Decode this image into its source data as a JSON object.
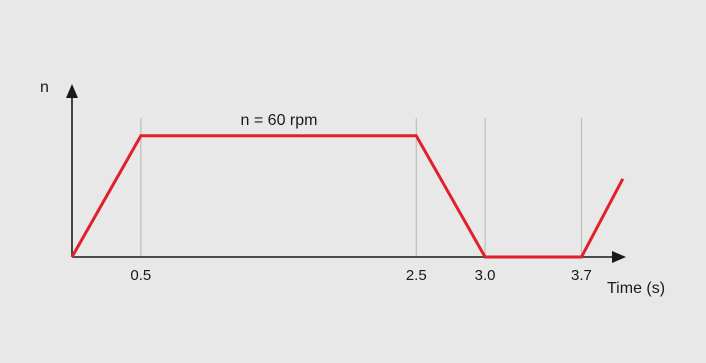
{
  "chart_data": {
    "type": "line",
    "title": "",
    "xlabel": "Time (s)",
    "ylabel": "n",
    "annotation": "n = 60 rpm",
    "x": [
      0,
      0.5,
      2.5,
      3.0,
      3.7,
      4.0
    ],
    "series": [
      {
        "values": [
          0,
          60,
          60,
          0,
          0,
          38.7
        ]
      }
    ],
    "xticks": [
      0.5,
      2.5,
      3.0,
      3.7
    ],
    "xtick_labels": [
      "0.5",
      "2.5",
      "3.0",
      "3.7"
    ],
    "xlim": [
      0,
      4.0
    ],
    "ylim": [
      0,
      60
    ],
    "grid": "vertical guide lines at tick positions",
    "colors": {
      "line": "#e0202a",
      "axis": "#1a1a1a",
      "guide": "#b5b5b5",
      "background": "#e8e8e8"
    }
  }
}
